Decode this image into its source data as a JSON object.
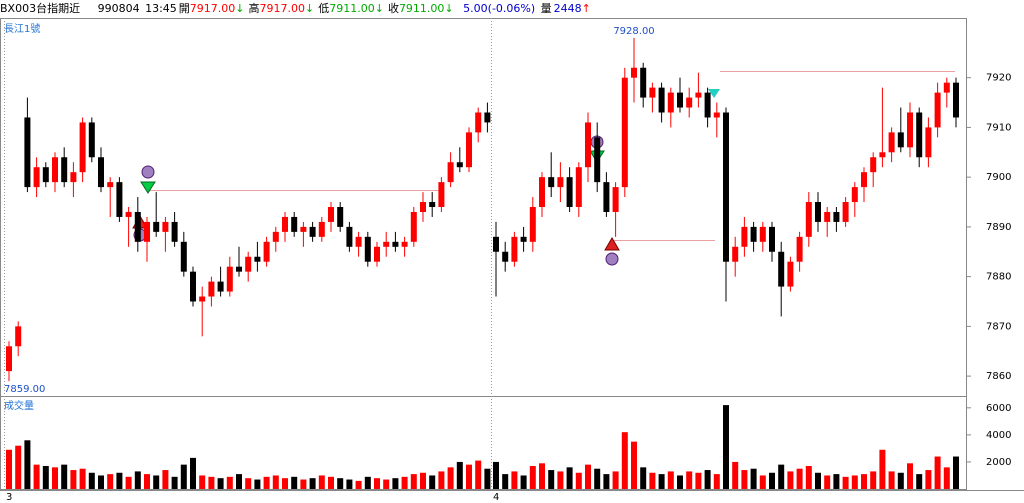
{
  "header": {
    "symbol": "BX003台指期近",
    "date": "990804",
    "time": "13:45",
    "quotes": [
      {
        "label": "開",
        "value": "7917.00",
        "arrow": "↓",
        "color": "#ff0000"
      },
      {
        "label": "高",
        "value": "7917.00",
        "arrow": "↓",
        "color": "#ff0000"
      },
      {
        "label": "低",
        "value": "7911.00",
        "arrow": "↓",
        "color": "#00aa00"
      },
      {
        "label": "收",
        "value": "7911.00",
        "arrow": "↓",
        "color": "#00aa00"
      }
    ],
    "change": "5.00(-0.06%)",
    "volume_label": "量",
    "volume": "2448",
    "volume_arrow": "↑"
  },
  "chart_data": {
    "type": "candlestick",
    "price_title": "長江1號",
    "volume_title": "成交量",
    "high_label": "7928.00",
    "low_label": "7859.00",
    "up_color": "#ff0000",
    "down_color": "#000000",
    "ylim": [
      7856,
      7932
    ],
    "yticks": [
      7860,
      7870,
      7880,
      7890,
      7900,
      7910,
      7920
    ],
    "vlim": [
      0,
      6800
    ],
    "vticks": [
      2000,
      4000,
      6000
    ],
    "sessions": [
      {
        "label": "3",
        "candles": [
          [
            7861,
            7867,
            7859,
            7866
          ],
          [
            7866,
            7871,
            7864,
            7870
          ],
          [
            7912,
            7916,
            7897,
            7898
          ],
          [
            7898,
            7904,
            7896,
            7902
          ],
          [
            7902,
            7903,
            7898,
            7899
          ],
          [
            7899,
            7905,
            7897,
            7904
          ],
          [
            7904,
            7906,
            7898,
            7899
          ],
          [
            7899,
            7903,
            7896,
            7901
          ],
          [
            7901,
            7912,
            7899,
            7911
          ],
          [
            7911,
            7912,
            7903,
            7904
          ],
          [
            7904,
            7906,
            7897,
            7898
          ],
          [
            7898,
            7900,
            7892,
            7899
          ],
          [
            7899,
            7900,
            7891,
            7892
          ],
          [
            7892,
            7894,
            7886,
            7893
          ],
          [
            7893,
            7896,
            7885,
            7887
          ],
          [
            7887,
            7892,
            7883,
            7891
          ],
          [
            7891,
            7897,
            7888,
            7889
          ],
          [
            7889,
            7892,
            7885,
            7891
          ],
          [
            7891,
            7893,
            7886,
            7887
          ],
          [
            7887,
            7889,
            7880,
            7881
          ],
          [
            7881,
            7882,
            7874,
            7875
          ],
          [
            7875,
            7878,
            7868,
            7876
          ],
          [
            7876,
            7880,
            7874,
            7879
          ],
          [
            7879,
            7882,
            7876,
            7877
          ],
          [
            7877,
            7884,
            7876,
            7882
          ],
          [
            7882,
            7886,
            7880,
            7881
          ],
          [
            7881,
            7885,
            7879,
            7884
          ],
          [
            7884,
            7887,
            7881,
            7883
          ],
          [
            7883,
            7888,
            7882,
            7887
          ],
          [
            7887,
            7890,
            7885,
            7889
          ],
          [
            7889,
            7893,
            7887,
            7892
          ],
          [
            7892,
            7893,
            7888,
            7889
          ],
          [
            7889,
            7891,
            7886,
            7890
          ],
          [
            7890,
            7891,
            7887,
            7888
          ],
          [
            7888,
            7892,
            7887,
            7891
          ],
          [
            7891,
            7895,
            7889,
            7894
          ],
          [
            7894,
            7895,
            7889,
            7890
          ],
          [
            7890,
            7891,
            7885,
            7886
          ],
          [
            7886,
            7889,
            7884,
            7888
          ],
          [
            7888,
            7889,
            7882,
            7883
          ],
          [
            7883,
            7887,
            7882,
            7886
          ],
          [
            7886,
            7889,
            7884,
            7887
          ],
          [
            7887,
            7889,
            7885,
            7886
          ],
          [
            7886,
            7888,
            7884,
            7887
          ],
          [
            7887,
            7894,
            7886,
            7893
          ],
          [
            7893,
            7897,
            7891,
            7895
          ],
          [
            7895,
            7897,
            7892,
            7894
          ],
          [
            7894,
            7900,
            7893,
            7899
          ],
          [
            7899,
            7905,
            7898,
            7903
          ],
          [
            7903,
            7906,
            7901,
            7902
          ],
          [
            7902,
            7910,
            7901,
            7909
          ],
          [
            7909,
            7914,
            7907,
            7913
          ],
          [
            7913,
            7915,
            7909,
            7911
          ]
        ],
        "volumes": [
          2900,
          3200,
          3600,
          1800,
          1700,
          1600,
          1800,
          1400,
          1500,
          1200,
          1000,
          1100,
          1200,
          900,
          1300,
          1100,
          1000,
          1400,
          900,
          1800,
          2300,
          1000,
          900,
          800,
          900,
          1100,
          800,
          700,
          900,
          1000,
          800,
          900,
          700,
          800,
          1000,
          900,
          800,
          700,
          600,
          900,
          800,
          700,
          800,
          900,
          1100,
          1200,
          1000,
          1300,
          1600,
          2000,
          1800,
          2100,
          1500
        ]
      },
      {
        "label": "4",
        "candles": [
          [
            7888,
            7891,
            7876,
            7885
          ],
          [
            7885,
            7887,
            7881,
            7883
          ],
          [
            7883,
            7889,
            7882,
            7888
          ],
          [
            7888,
            7890,
            7885,
            7887
          ],
          [
            7887,
            7896,
            7885,
            7894
          ],
          [
            7894,
            7901,
            7892,
            7900
          ],
          [
            7900,
            7905,
            7896,
            7898
          ],
          [
            7898,
            7903,
            7895,
            7900
          ],
          [
            7900,
            7902,
            7893,
            7894
          ],
          [
            7894,
            7903,
            7892,
            7902
          ],
          [
            7902,
            7913,
            7899,
            7911
          ],
          [
            7908,
            7911,
            7897,
            7899
          ],
          [
            7899,
            7901,
            7892,
            7893
          ],
          [
            7893,
            7899,
            7888,
            7898
          ],
          [
            7898,
            7922,
            7896,
            7920
          ],
          [
            7920,
            7928,
            7915,
            7922
          ],
          [
            7922,
            7923,
            7914,
            7916
          ],
          [
            7916,
            7919,
            7913,
            7918
          ],
          [
            7918,
            7919,
            7911,
            7913
          ],
          [
            7913,
            7918,
            7910,
            7917
          ],
          [
            7917,
            7920,
            7913,
            7914
          ],
          [
            7914,
            7918,
            7912,
            7916
          ],
          [
            7916,
            7921,
            7914,
            7917
          ],
          [
            7917,
            7918,
            7910,
            7912
          ],
          [
            7912,
            7915,
            7908,
            7913
          ],
          [
            7913,
            7914,
            7875,
            7883
          ],
          [
            7883,
            7888,
            7880,
            7886
          ],
          [
            7886,
            7892,
            7884,
            7890
          ],
          [
            7890,
            7891,
            7885,
            7887
          ],
          [
            7887,
            7891,
            7885,
            7890
          ],
          [
            7890,
            7891,
            7883,
            7885
          ],
          [
            7885,
            7887,
            7872,
            7878
          ],
          [
            7878,
            7884,
            7877,
            7883
          ],
          [
            7883,
            7889,
            7881,
            7888
          ],
          [
            7888,
            7897,
            7886,
            7895
          ],
          [
            7895,
            7897,
            7889,
            7891
          ],
          [
            7891,
            7894,
            7888,
            7893
          ],
          [
            7893,
            7894,
            7889,
            7891
          ],
          [
            7891,
            7896,
            7890,
            7895
          ],
          [
            7895,
            7899,
            7892,
            7898
          ],
          [
            7898,
            7902,
            7895,
            7901
          ],
          [
            7901,
            7905,
            7898,
            7904
          ],
          [
            7904,
            7918,
            7902,
            7905
          ],
          [
            7905,
            7910,
            7903,
            7909
          ],
          [
            7909,
            7914,
            7905,
            7906
          ],
          [
            7906,
            7915,
            7904,
            7913
          ],
          [
            7913,
            7914,
            7902,
            7904
          ],
          [
            7904,
            7912,
            7902,
            7910
          ],
          [
            7910,
            7919,
            7908,
            7917
          ],
          [
            7917,
            7920,
            7914,
            7919
          ],
          [
            7919,
            7920,
            7910,
            7912
          ]
        ],
        "volumes": [
          2000,
          1100,
          1300,
          1000,
          1700,
          1900,
          1400,
          1300,
          1600,
          1200,
          1800,
          1500,
          1100,
          1300,
          4200,
          3500,
          1600,
          1200,
          1100,
          1300,
          1000,
          1300,
          1200,
          1400,
          1100,
          6200,
          2000,
          1400,
          1500,
          1000,
          1200,
          1800,
          1300,
          1500,
          1700,
          1200,
          1000,
          1100,
          900,
          1000,
          1100,
          1300,
          2900,
          1300,
          1200,
          1900,
          1100,
          1400,
          2400,
          1600,
          2400
        ]
      }
    ]
  }
}
